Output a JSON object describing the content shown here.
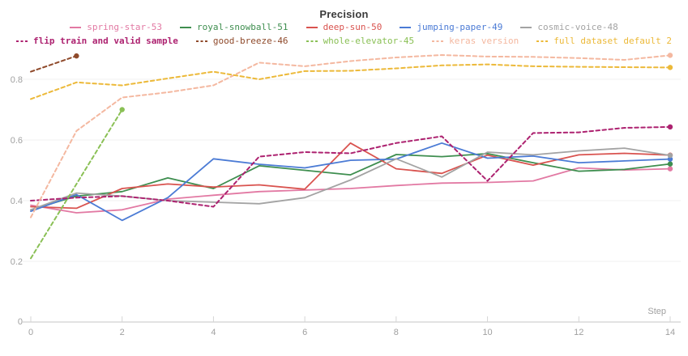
{
  "title": "Precision",
  "axes": {
    "x_label": "Step",
    "x_ticks": [
      0,
      2,
      4,
      6,
      8,
      10,
      12,
      14
    ],
    "y_ticks": [
      0,
      0.2,
      0.4,
      0.6,
      0.8
    ]
  },
  "chart_data": {
    "type": "line",
    "title": "Precision",
    "xlabel": "Step",
    "ylabel": "",
    "xlim": [
      0,
      14
    ],
    "ylim": [
      0,
      0.95
    ],
    "grid": true,
    "legend_position": "top",
    "x": [
      0,
      1,
      2,
      3,
      4,
      5,
      6,
      7,
      8,
      9,
      10,
      11,
      12,
      13,
      14
    ],
    "series": [
      {
        "name": "spring-star-53",
        "color": "#e279a3",
        "dashed": false,
        "bold": false,
        "values": [
          0.385,
          0.36,
          0.37,
          0.405,
          0.418,
          0.43,
          0.435,
          0.44,
          0.45,
          0.458,
          0.46,
          0.465,
          0.508,
          0.501,
          0.505
        ]
      },
      {
        "name": "royal-snowball-51",
        "color": "#3e8e4f",
        "dashed": false,
        "bold": false,
        "values": [
          0.37,
          0.415,
          0.43,
          0.475,
          0.44,
          0.515,
          0.5,
          0.485,
          0.552,
          0.545,
          0.555,
          0.525,
          0.497,
          0.503,
          0.521
        ]
      },
      {
        "name": "deep-sun-50",
        "color": "#d9534f",
        "dashed": false,
        "bold": false,
        "values": [
          0.38,
          0.375,
          0.44,
          0.455,
          0.445,
          0.452,
          0.438,
          0.59,
          0.505,
          0.49,
          0.55,
          0.517,
          0.551,
          0.556,
          0.55
        ]
      },
      {
        "name": "jumping-paper-49",
        "color": "#4b7bd5",
        "dashed": false,
        "bold": false,
        "values": [
          0.365,
          0.42,
          0.335,
          0.41,
          0.538,
          0.52,
          0.508,
          0.533,
          0.537,
          0.59,
          0.54,
          0.547,
          0.525,
          0.531,
          0.537
        ]
      },
      {
        "name": "cosmic-voice-48",
        "color": "#a3a3a3",
        "dashed": false,
        "bold": false,
        "values": [
          0.37,
          0.425,
          0.415,
          0.4,
          0.395,
          0.39,
          0.41,
          0.468,
          0.538,
          0.478,
          0.56,
          0.551,
          0.564,
          0.573,
          0.549
        ]
      },
      {
        "name": "flip train and valid sample",
        "color": "#ad2270",
        "dashed": true,
        "bold": true,
        "values": [
          0.4,
          0.41,
          0.415,
          0.4,
          0.38,
          0.545,
          0.56,
          0.556,
          0.59,
          0.612,
          0.465,
          0.623,
          0.625,
          0.64,
          0.643
        ]
      },
      {
        "name": "good-breeze-46",
        "color": "#8f4a2b",
        "dashed": true,
        "bold": false,
        "values": [
          0.825,
          0.877,
          null,
          null,
          null,
          null,
          null,
          null,
          null,
          null,
          null,
          null,
          null,
          null,
          null
        ]
      },
      {
        "name": "whole-elevator-45",
        "color": "#8ac055",
        "dashed": true,
        "bold": false,
        "values": [
          0.21,
          0.455,
          0.7,
          null,
          null,
          null,
          null,
          null,
          null,
          null,
          null,
          null,
          null,
          null,
          null
        ]
      },
      {
        "name": "keras version",
        "color": "#f4b8a0",
        "dashed": true,
        "bold": false,
        "values": [
          0.345,
          0.63,
          0.74,
          0.757,
          0.78,
          0.855,
          0.843,
          0.86,
          0.872,
          0.88,
          0.875,
          0.874,
          0.87,
          0.864,
          0.879
        ]
      },
      {
        "name": "full dataset default 2",
        "color": "#ecb939",
        "dashed": true,
        "bold": false,
        "values": [
          0.735,
          0.79,
          0.78,
          0.803,
          0.825,
          0.8,
          0.827,
          0.828,
          0.836,
          0.846,
          0.849,
          0.843,
          0.841,
          0.84,
          0.839
        ]
      }
    ]
  },
  "style": {
    "grid_color": "#f0f0f0",
    "axis_color": "#e2e2e2",
    "tick_color": "#d5d5d5",
    "tick_label_color": "#a0a0a0",
    "title_color": "#3a3a3a"
  }
}
